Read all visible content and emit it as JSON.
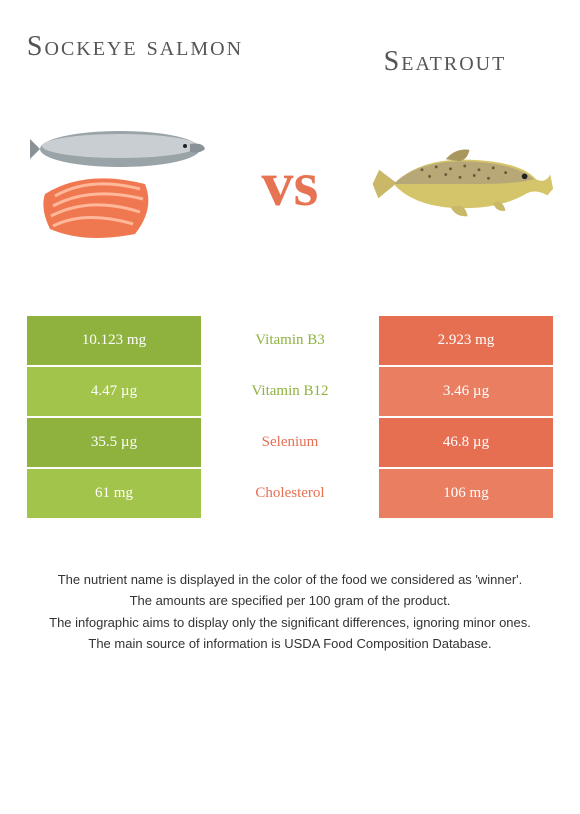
{
  "foods": {
    "left": {
      "title": "Sockeye salmon",
      "color": "#8fb23f",
      "color_alt": "#a2c44a"
    },
    "right": {
      "title": "Seatrout",
      "color": "#e66f52",
      "color_alt": "#ea7e61"
    }
  },
  "vs_label": "vs",
  "vs_color": "#e67452",
  "rows": [
    {
      "nutrient": "Vitamin B3",
      "left_val": "10.123 mg",
      "right_val": "2.923 mg",
      "winner": "left"
    },
    {
      "nutrient": "Vitamin B12",
      "left_val": "4.47 µg",
      "right_val": "3.46 µg",
      "winner": "left"
    },
    {
      "nutrient": "Selenium",
      "left_val": "35.5 µg",
      "right_val": "46.8 µg",
      "winner": "right"
    },
    {
      "nutrient": "Cholesterol",
      "left_val": "61 mg",
      "right_val": "106 mg",
      "winner": "right"
    }
  ],
  "footnotes": [
    "The nutrient name is displayed in the color of the food we considered as 'winner'.",
    "The amounts are specified per 100 gram of the product.",
    "The infographic aims to display only the significant differences, ignoring minor ones.",
    "The main source of information is USDA Food Composition Database."
  ],
  "style": {
    "background": "#ffffff",
    "title_fontsize": 28,
    "vs_fontsize": 64,
    "cell_fontsize": 15,
    "footnote_fontsize": 13
  }
}
